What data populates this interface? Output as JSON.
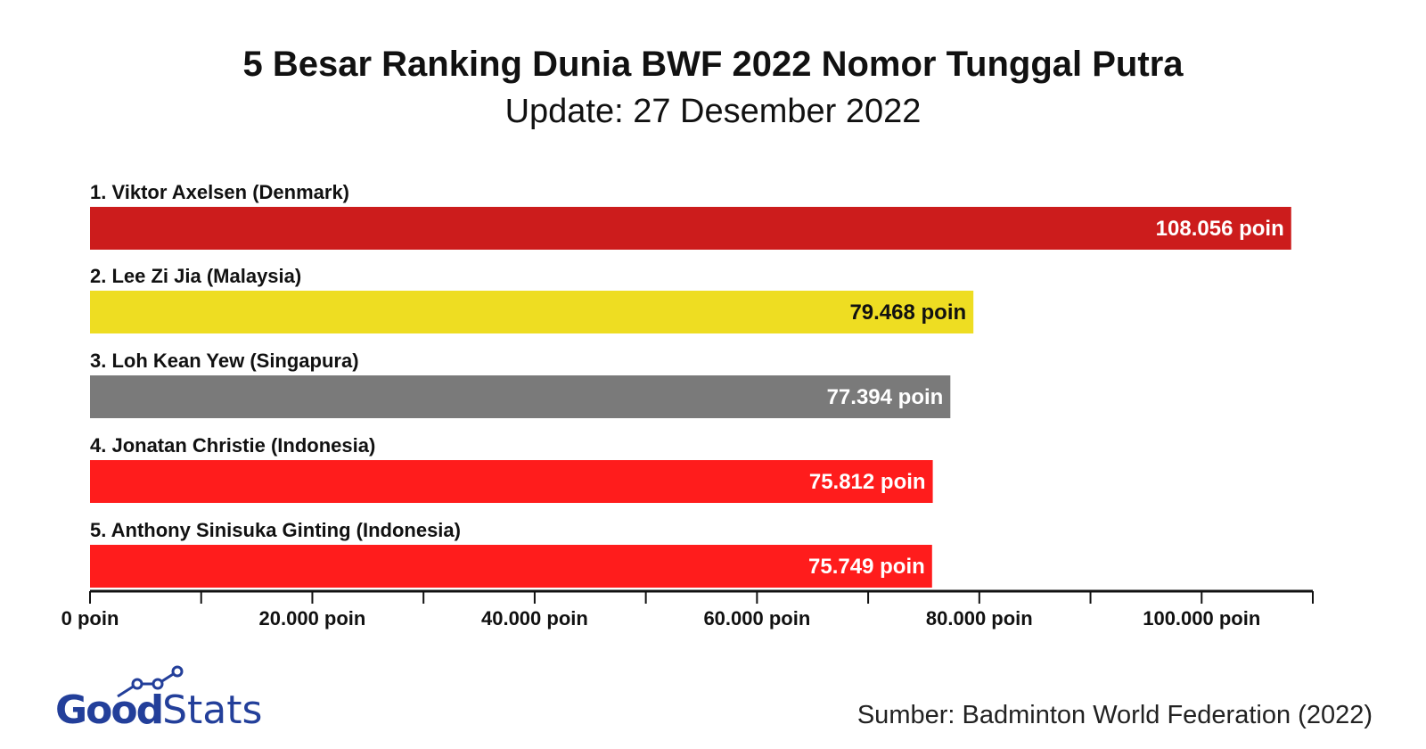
{
  "chart_data": {
    "type": "bar",
    "orientation": "horizontal",
    "title": "5 Besar Ranking Dunia BWF 2022 Nomor Tunggal Putra",
    "subtitle": "Update: 27 Desember 2022",
    "categories": [
      "1. Viktor Axelsen (Denmark)",
      "2. Lee Zi Jia (Malaysia)",
      "3. Loh Kean Yew (Singapura)",
      "4. Jonatan Christie (Indonesia)",
      "5. Anthony Sinisuka Ginting (Indonesia)"
    ],
    "values": [
      108056,
      79468,
      77394,
      75812,
      75749
    ],
    "data_labels": [
      "108.056 poin",
      "79.468 poin",
      "77.394 poin",
      "75.812 poin",
      "75.749 poin"
    ],
    "colors": [
      "#cc1c1c",
      "#eedd22",
      "#7a7a7a",
      "#ff1c1c",
      "#ff1c1c"
    ],
    "label_colors": [
      "#ffffff",
      "#111111",
      "#ffffff",
      "#ffffff",
      "#ffffff"
    ],
    "xlim": [
      0,
      110000
    ],
    "x_ticks": [
      0,
      10000,
      20000,
      30000,
      40000,
      50000,
      60000,
      70000,
      80000,
      90000,
      100000,
      110000
    ],
    "x_tick_labels": [
      "0 poin",
      "",
      "20.000 poin",
      "",
      "40.000 poin",
      "",
      "60.000 poin",
      "",
      "80.000 poin",
      "",
      "100.000 poin",
      ""
    ],
    "grid": false,
    "legend": "none"
  },
  "footer": {
    "source": "Sumber: Badminton World Federation (2022)",
    "logo_text": "GoodStats",
    "logo_color": "#233f9a"
  }
}
